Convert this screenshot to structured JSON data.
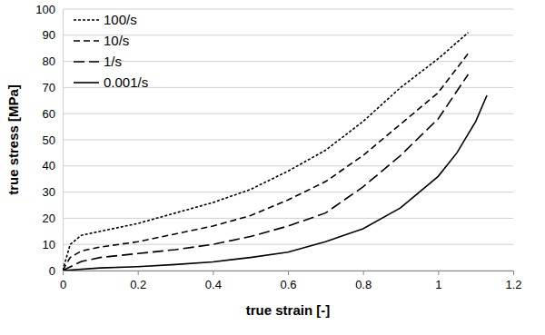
{
  "chart_data": {
    "type": "line",
    "x_label": "true strain [-]",
    "y_label": "true stress [MPa]",
    "xlim": [
      0,
      1.2
    ],
    "xticks": [
      0,
      0.2,
      0.4,
      0.6,
      0.8,
      1,
      1.2
    ],
    "ylim": [
      0,
      100
    ],
    "yticks": [
      0,
      10,
      20,
      30,
      40,
      50,
      60,
      70,
      80,
      90,
      100
    ],
    "grid": true,
    "legend": "top-left",
    "series": [
      {
        "name": "100/s",
        "color": "#000000",
        "line_style": "dotted",
        "x": [
          0,
          0.02,
          0.05,
          0.1,
          0.2,
          0.3,
          0.4,
          0.5,
          0.6,
          0.7,
          0.8,
          0.9,
          1.0,
          1.08
        ],
        "values": [
          0,
          10,
          13.5,
          15,
          18,
          22,
          26,
          31,
          38,
          46,
          57,
          70,
          81,
          91
        ]
      },
      {
        "name": "10/s",
        "color": "#000000",
        "line_style": "dashed",
        "x": [
          0,
          0.02,
          0.05,
          0.1,
          0.2,
          0.3,
          0.4,
          0.5,
          0.6,
          0.7,
          0.8,
          0.9,
          1.0,
          1.08
        ],
        "values": [
          0,
          5,
          7.5,
          9,
          11,
          14,
          17,
          21,
          27,
          34,
          44,
          56,
          68,
          83
        ]
      },
      {
        "name": "1/s",
        "color": "#000000",
        "line_style": "longdash",
        "x": [
          0,
          0.05,
          0.1,
          0.2,
          0.3,
          0.4,
          0.5,
          0.6,
          0.7,
          0.8,
          0.9,
          1.0,
          1.08
        ],
        "values": [
          0,
          3.5,
          5,
          6.5,
          8,
          10,
          13,
          17,
          22,
          32,
          44,
          58,
          75
        ]
      },
      {
        "name": "0.001/s",
        "color": "#000000",
        "line_style": "solid",
        "x": [
          0,
          0.1,
          0.2,
          0.3,
          0.4,
          0.5,
          0.6,
          0.7,
          0.8,
          0.9,
          1.0,
          1.05,
          1.1,
          1.13
        ],
        "values": [
          0,
          1,
          1.5,
          2.3,
          3.3,
          5,
          7,
          11,
          16,
          24,
          36,
          45,
          57,
          67
        ]
      }
    ]
  }
}
